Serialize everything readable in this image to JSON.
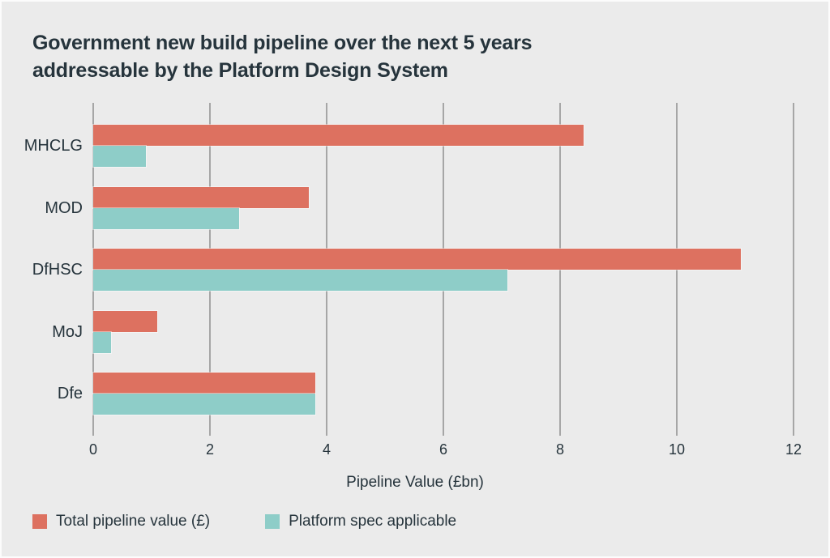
{
  "title": {
    "line1": "Government new build pipeline over the next 5 years",
    "line2": "addressable by the Platform Design System"
  },
  "chart_data": {
    "type": "bar",
    "orientation": "horizontal",
    "title": "Government new build pipeline over the next 5 years addressable by the Platform Design System",
    "categories": [
      "MHCLG",
      "MOD",
      "DfHSC",
      "MoJ",
      "Dfe"
    ],
    "series": [
      {
        "name": "Total pipeline value (£)",
        "color": "#dd7160",
        "values": [
          8.4,
          3.7,
          11.1,
          1.1,
          3.8
        ]
      },
      {
        "name": "Platform spec applicable",
        "color": "#8ecdc8",
        "values": [
          0.9,
          2.5,
          7.1,
          0.3,
          3.8
        ]
      }
    ],
    "xlabel": "Pipeline Value (£bn)",
    "ylabel": "",
    "xlim": [
      0,
      12
    ],
    "xticks": [
      0,
      2,
      4,
      6,
      8,
      10,
      12
    ],
    "grid": true,
    "legend_position": "bottom-left"
  },
  "colors": {
    "background": "#ebebeb",
    "grid": "#a6a6a6",
    "text": "#26343c",
    "series1": "#dd7160",
    "series2": "#8ecdc8"
  }
}
